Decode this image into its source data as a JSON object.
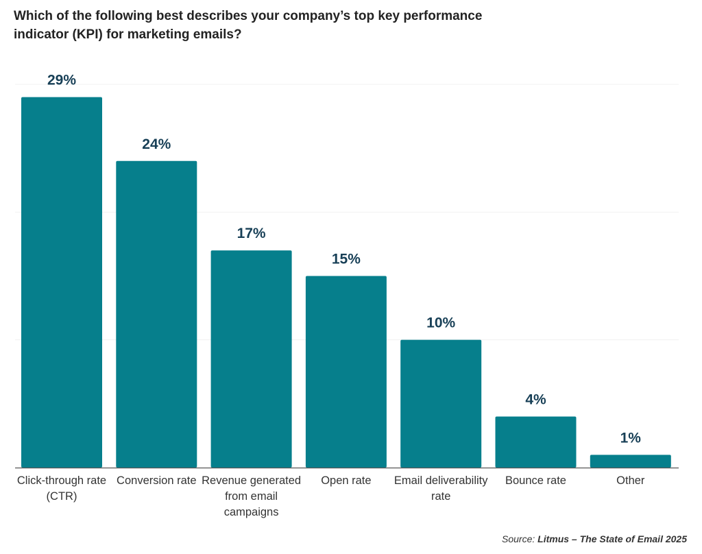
{
  "chart_data": {
    "type": "bar",
    "title": "Which of the following best describes your company’s top key performance indicator (KPI) for marketing emails?",
    "categories": [
      "Click-through rate (CTR)",
      "Conversion rate",
      "Revenue generated from email campaigns",
      "Open rate",
      "Email deliverability rate",
      "Bounce rate",
      "Other"
    ],
    "values": [
      29,
      24,
      17,
      15,
      10,
      4,
      1
    ],
    "value_labels": [
      "29%",
      "24%",
      "17%",
      "15%",
      "10%",
      "4%",
      "1%"
    ],
    "unit": "%",
    "ylim": [
      0,
      30
    ],
    "grid": true,
    "bar_color": "#067F8C",
    "label_color": "#173F56"
  },
  "source": {
    "prefix": "Source: ",
    "name": "Litmus – The State of Email 2025"
  }
}
